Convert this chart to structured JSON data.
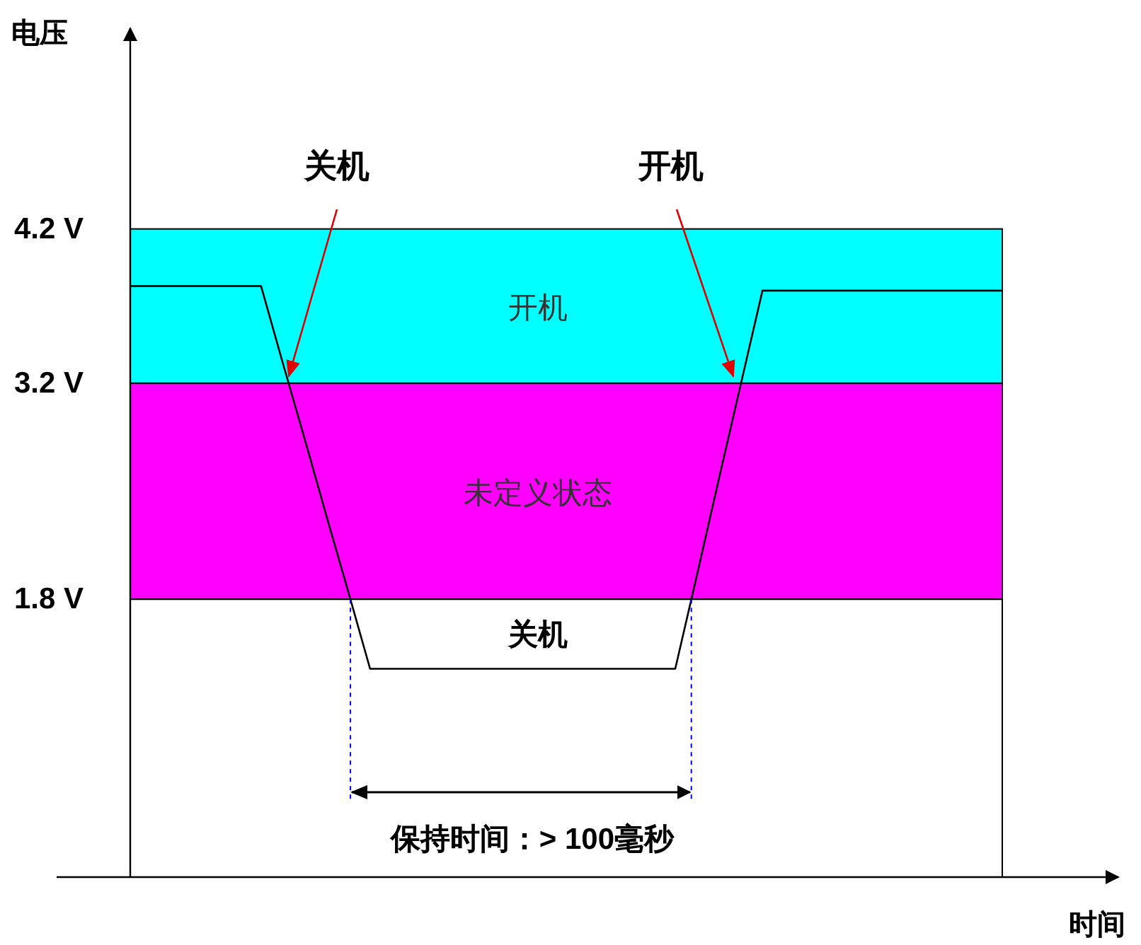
{
  "chart_data": {
    "type": "line",
    "xlabel": "时间",
    "ylabel": "电压",
    "categories": [
      null,
      null,
      null,
      null,
      null,
      null,
      null,
      null,
      null,
      null,
      null,
      null,
      null,
      null,
      null,
      null,
      null,
      null,
      null,
      null,
      null,
      null,
      null,
      null,
      null,
      null,
      null,
      null,
      null,
      null,
      null,
      null,
      null,
      null,
      null,
      null,
      null,
      null,
      null,
      null,
      null
    ],
    "series": [
      {
        "color": "#000000",
        "values": [
          3.83,
          3.83,
          3.83,
          3.83,
          3.83,
          3.83,
          3.83,
          3.33,
          2.84,
          2.34,
          1.85,
          1.35,
          1.35,
          1.35,
          1.35,
          1.35,
          1.35,
          1.35,
          1.35,
          1.35,
          1.35,
          1.35,
          1.35,
          1.35,
          1.35,
          1.35,
          1.96,
          2.58,
          3.19,
          3.8,
          3.8,
          3.8,
          3.8,
          3.8,
          3.8,
          3.8,
          3.8,
          3.8,
          3.8,
          3.8,
          3.8
        ]
      }
    ],
    "ylim": [
      0,
      5.5
    ],
    "yticks": [
      {
        "value": 1.8,
        "label": "1.8 V"
      },
      {
        "value": 3.2,
        "label": "3.2 V"
      },
      {
        "value": 4.2,
        "label": "4.2 V"
      }
    ],
    "tick_labels": "y",
    "grid": false,
    "marker": "none",
    "line_style": "solid",
    "bands": [
      {
        "axis": "y",
        "from": 3.2,
        "to": 4.2,
        "label": "开机",
        "color": "#00ffff"
      },
      {
        "axis": "y",
        "from": 1.8,
        "to": 3.2,
        "label": "未定义状态",
        "color": "#ff00ff"
      },
      {
        "axis": "y",
        "from": 0,
        "to": 1.8,
        "label": "关机",
        "color": "#ffffff"
      }
    ],
    "annotations": [
      "关机",
      "开机",
      "保持时间：> 100毫秒"
    ]
  }
}
